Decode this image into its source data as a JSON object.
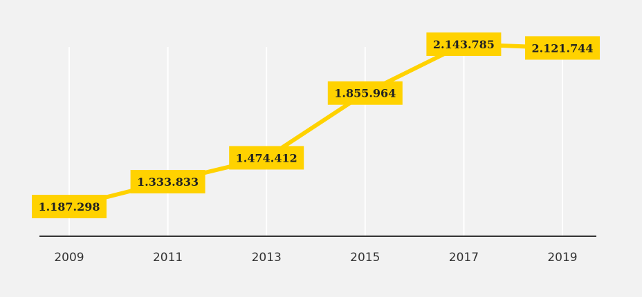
{
  "chart_data": {
    "type": "line",
    "title": "",
    "xlabel": "",
    "ylabel": "",
    "x": [
      "2009",
      "2011",
      "2013",
      "2015",
      "2017",
      "2019"
    ],
    "values": [
      1187298,
      1333833,
      1474412,
      1855964,
      2143785,
      2121744
    ],
    "value_labels": [
      "1.187.298",
      "1.333.833",
      "1.474.412",
      "1.855.964",
      "2.143.785",
      "2.121.744"
    ],
    "ylim": [
      800000,
      2200000
    ],
    "grid": "vertical",
    "legend": "none",
    "colors": {
      "line": "#ffd200",
      "label_box": "#ffd200",
      "label_text": "#222222",
      "gridline": "#ffffff",
      "axis": "#333333",
      "background": "#f2f2f2"
    }
  }
}
